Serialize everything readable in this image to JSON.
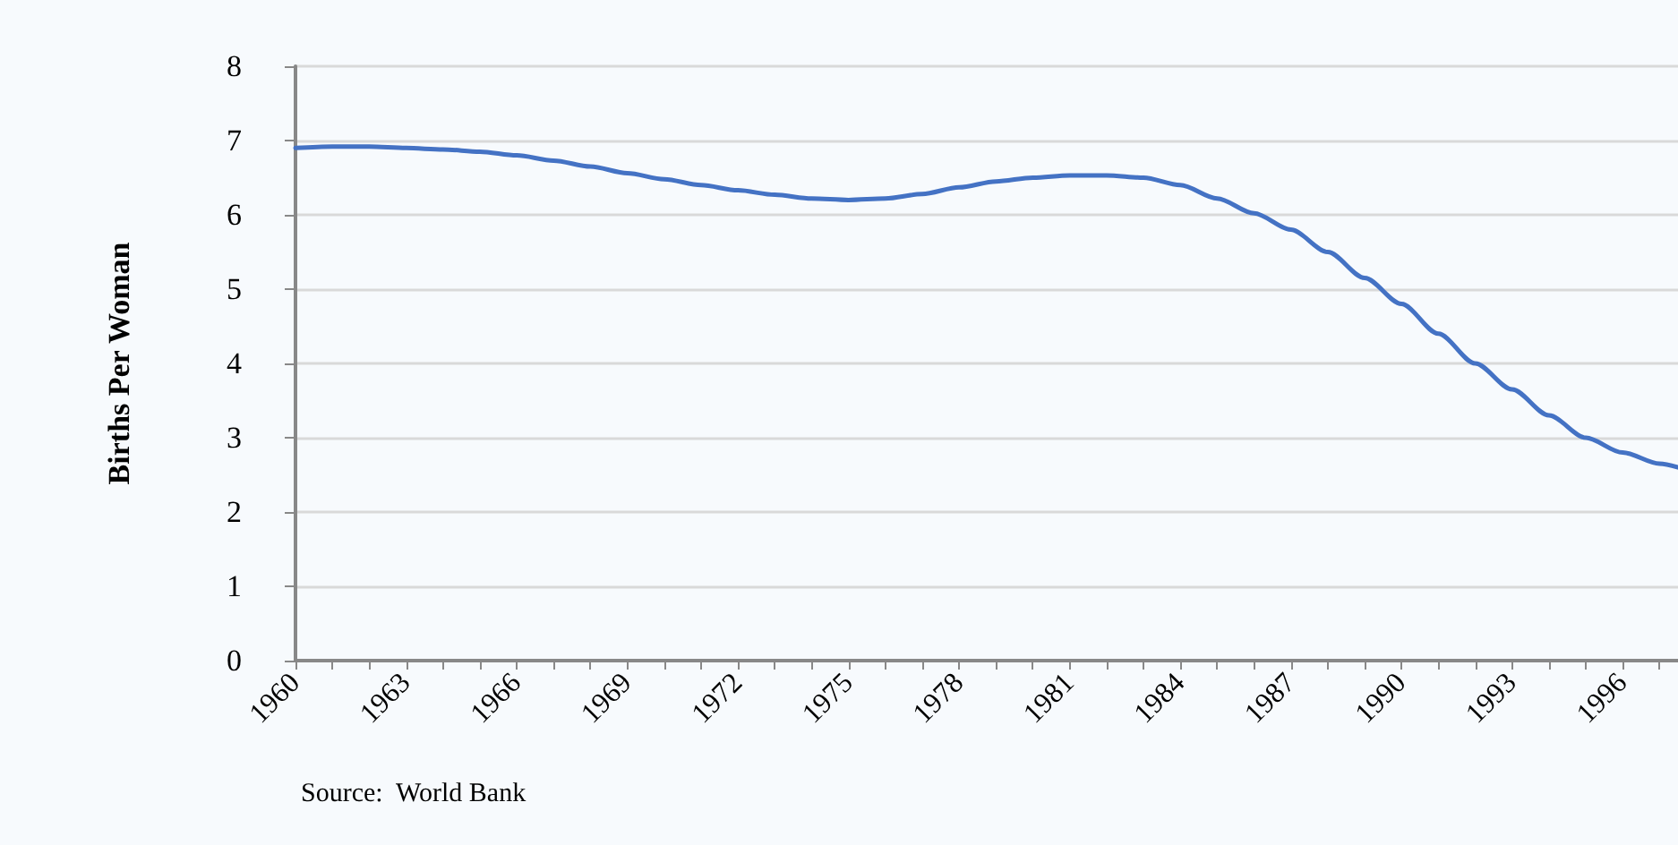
{
  "chart_data": {
    "type": "line",
    "ylabel": "Births Per Woman",
    "annotations": [
      "Source:  World Bank"
    ],
    "x": [
      1960,
      1961,
      1962,
      1963,
      1964,
      1965,
      1966,
      1967,
      1968,
      1969,
      1970,
      1971,
      1972,
      1973,
      1974,
      1975,
      1976,
      1977,
      1978,
      1979,
      1980,
      1981,
      1982,
      1983,
      1984,
      1985,
      1986,
      1987,
      1988,
      1989,
      1990,
      1991,
      1992,
      1993,
      1994,
      1995,
      1996,
      1997,
      1997.5
    ],
    "series": [
      {
        "color": "#4472c4",
        "values": [
          6.9,
          6.92,
          6.92,
          6.9,
          6.88,
          6.85,
          6.8,
          6.73,
          6.65,
          6.56,
          6.48,
          6.4,
          6.33,
          6.27,
          6.22,
          6.2,
          6.22,
          6.28,
          6.37,
          6.45,
          6.5,
          6.53,
          6.53,
          6.5,
          6.4,
          6.22,
          6.02,
          5.8,
          5.5,
          5.15,
          4.8,
          4.4,
          4.0,
          3.65,
          3.3,
          3.0,
          2.8,
          2.65,
          2.6
        ]
      }
    ],
    "xlim": [
      1960,
      1997.5
    ],
    "xticks": [
      1960,
      {
        "value": 1961,
        "label": null
      },
      {
        "value": 1962,
        "label": null
      },
      1963,
      {
        "value": 1964,
        "label": null
      },
      {
        "value": 1965,
        "label": null
      },
      1966,
      {
        "value": 1967,
        "label": null
      },
      {
        "value": 1968,
        "label": null
      },
      1969,
      {
        "value": 1970,
        "label": null
      },
      {
        "value": 1971,
        "label": null
      },
      1972,
      {
        "value": 1973,
        "label": null
      },
      {
        "value": 1974,
        "label": null
      },
      1975,
      {
        "value": 1976,
        "label": null
      },
      {
        "value": 1977,
        "label": null
      },
      1978,
      {
        "value": 1979,
        "label": null
      },
      {
        "value": 1980,
        "label": null
      },
      1981,
      {
        "value": 1982,
        "label": null
      },
      {
        "value": 1983,
        "label": null
      },
      1984,
      {
        "value": 1985,
        "label": null
      },
      {
        "value": 1986,
        "label": null
      },
      1987,
      {
        "value": 1988,
        "label": null
      },
      {
        "value": 1989,
        "label": null
      },
      1990,
      {
        "value": 1991,
        "label": null
      },
      {
        "value": 1992,
        "label": null
      },
      1993,
      {
        "value": 1994,
        "label": null
      },
      {
        "value": 1995,
        "label": null
      },
      1996,
      {
        "value": 1997,
        "label": null
      }
    ],
    "ylim": [
      0,
      8
    ],
    "yticks": [
      0,
      1,
      2,
      3,
      4,
      5,
      6,
      7,
      8
    ],
    "grid": "y",
    "marker": "none",
    "line_style": "solid"
  }
}
